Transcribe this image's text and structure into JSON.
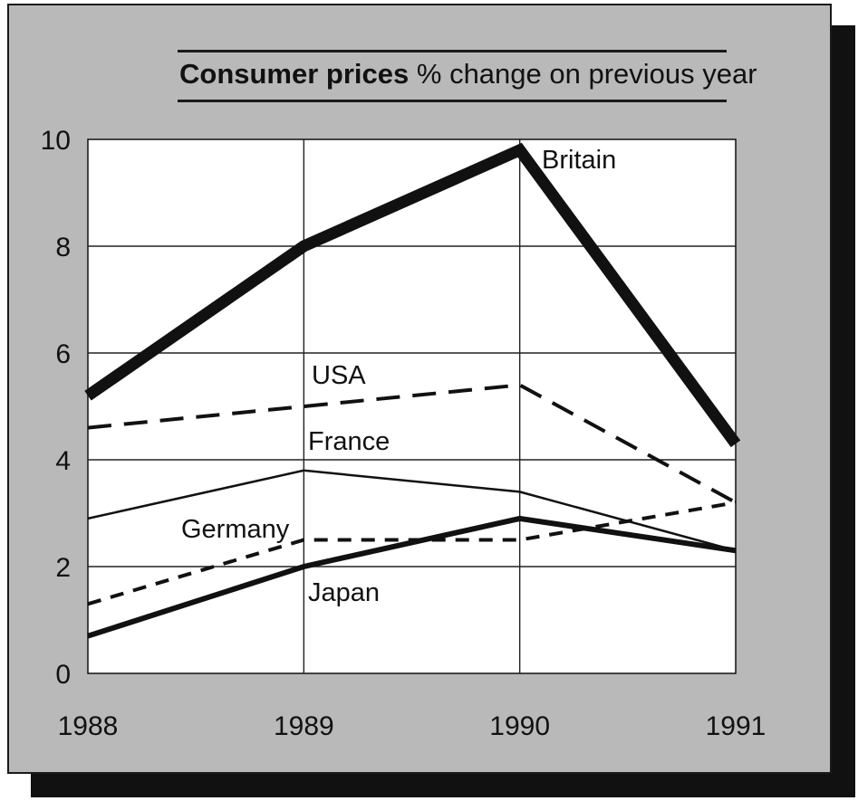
{
  "chart_data": {
    "type": "line",
    "title_bold": "Consumer prices",
    "title_rest": "% change on previous year",
    "x": [
      "1988",
      "1989",
      "1990",
      "1991"
    ],
    "ylim": [
      0,
      10
    ],
    "yticks": [
      "0",
      "2",
      "4",
      "6",
      "8",
      "10"
    ],
    "grid": true,
    "series": [
      {
        "name": "Britain",
        "values": [
          5.2,
          8.0,
          9.8,
          4.3
        ],
        "style": "heavy"
      },
      {
        "name": "USA",
        "values": [
          4.6,
          5.0,
          5.4,
          3.2
        ],
        "style": "dashed"
      },
      {
        "name": "France",
        "values": [
          2.9,
          3.8,
          3.4,
          2.3
        ],
        "style": "thin"
      },
      {
        "name": "Germany",
        "values": [
          1.3,
          2.5,
          2.5,
          3.2
        ],
        "style": "short-dashed"
      },
      {
        "name": "Japan",
        "values": [
          0.7,
          2.0,
          2.9,
          2.3
        ],
        "style": "medium"
      }
    ]
  },
  "colors": {
    "panel": "#b9b9b9",
    "plot": "#ffffff",
    "ink": "#111111"
  }
}
